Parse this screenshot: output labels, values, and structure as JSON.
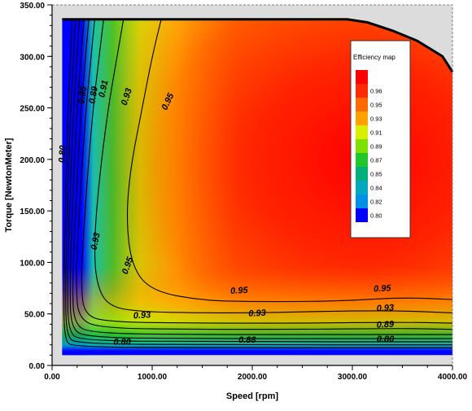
{
  "chart_data": {
    "type": "heatmap",
    "title": "",
    "xlabel": "Speed [rpm]",
    "ylabel": "Torque [NewtonMeter]",
    "xlim": [
      0,
      4000
    ],
    "ylim": [
      0,
      350
    ],
    "x_ticks": [
      {
        "value": 0,
        "label": "0.00"
      },
      {
        "value": 1000,
        "label": "1000.00"
      },
      {
        "value": 2000,
        "label": "2000.00"
      },
      {
        "value": 3000,
        "label": "3000.00"
      },
      {
        "value": 4000,
        "label": "4000.00"
      }
    ],
    "y_ticks": [
      {
        "value": 0,
        "label": "0.00"
      },
      {
        "value": 50,
        "label": "50.00"
      },
      {
        "value": 100,
        "label": "100.00"
      },
      {
        "value": 150,
        "label": "150.00"
      },
      {
        "value": 200,
        "label": "200.00"
      },
      {
        "value": 250,
        "label": "250.00"
      },
      {
        "value": 300,
        "label": "300.00"
      },
      {
        "value": 350,
        "label": "350.00"
      }
    ],
    "domain": {
      "speed_min": 100,
      "speed_max": 4000,
      "torque_min": 10,
      "torque_max": 336
    },
    "max_torque_envelope": [
      {
        "speed": 100,
        "torque": 336
      },
      {
        "speed": 2950,
        "torque": 336
      },
      {
        "speed": 3150,
        "torque": 333
      },
      {
        "speed": 3400,
        "torque": 325
      },
      {
        "speed": 3650,
        "torque": 315
      },
      {
        "speed": 3900,
        "torque": 300
      },
      {
        "speed": 4000,
        "torque": 285
      }
    ],
    "legend": {
      "title": "Efficiency map",
      "levels": [
        {
          "label": "",
          "color": "#ff0000"
        },
        {
          "label": "0.96",
          "color": "#ff2a00"
        },
        {
          "label": "0.95",
          "color": "#ff6a00"
        },
        {
          "label": "0.93",
          "color": "#ffa200"
        },
        {
          "label": "0.91",
          "color": "#d8f000"
        },
        {
          "label": "0.89",
          "color": "#7ee000"
        },
        {
          "label": "0.87",
          "color": "#1fc72b"
        },
        {
          "label": "0.85",
          "color": "#00b07a"
        },
        {
          "label": "0.84",
          "color": "#00a8c0"
        },
        {
          "label": "0.82",
          "color": "#0090e8"
        },
        {
          "label": "0.80",
          "color": "#0000ff"
        }
      ]
    },
    "contour_lines": [
      {
        "level": 0.95,
        "points": [
          [
            1100,
            340
          ],
          [
            1000,
            300
          ],
          [
            900,
            250
          ],
          [
            780,
            190
          ],
          [
            740,
            140
          ],
          [
            800,
            95
          ],
          [
            1000,
            72
          ],
          [
            1500,
            63
          ],
          [
            2000,
            62
          ],
          [
            2500,
            62
          ],
          [
            3000,
            63
          ],
          [
            3500,
            66
          ],
          [
            4000,
            64
          ]
        ]
      },
      {
        "level": 0.93,
        "points": [
          [
            720,
            340
          ],
          [
            650,
            300
          ],
          [
            560,
            250
          ],
          [
            470,
            180
          ],
          [
            420,
            120
          ],
          [
            440,
            80
          ],
          [
            560,
            57
          ],
          [
            900,
            52
          ],
          [
            1500,
            51
          ],
          [
            2000,
            51
          ],
          [
            2500,
            52
          ],
          [
            3000,
            53
          ],
          [
            3500,
            53
          ],
          [
            4000,
            51
          ]
        ]
      },
      {
        "level": 0.91,
        "points": [
          [
            520,
            340
          ],
          [
            470,
            300
          ],
          [
            410,
            250
          ],
          [
            350,
            180
          ],
          [
            310,
            120
          ],
          [
            290,
            80
          ],
          [
            320,
            48
          ],
          [
            600,
            42
          ],
          [
            1500,
            41
          ],
          [
            2500,
            41
          ],
          [
            3500,
            42
          ],
          [
            4000,
            41
          ]
        ]
      },
      {
        "level": 0.89,
        "points": [
          [
            430,
            340
          ],
          [
            390,
            300
          ],
          [
            340,
            250
          ],
          [
            290,
            180
          ],
          [
            255,
            120
          ],
          [
            240,
            80
          ],
          [
            260,
            45
          ],
          [
            500,
            36
          ],
          [
            1500,
            35
          ],
          [
            2500,
            35
          ],
          [
            3500,
            36
          ],
          [
            4000,
            35
          ]
        ]
      },
      {
        "level": 0.87,
        "points": [
          [
            370,
            340
          ],
          [
            335,
            300
          ],
          [
            290,
            250
          ],
          [
            250,
            180
          ],
          [
            220,
            120
          ],
          [
            205,
            80
          ],
          [
            215,
            40
          ],
          [
            400,
            31
          ],
          [
            1500,
            30
          ],
          [
            2500,
            30
          ],
          [
            4000,
            30
          ]
        ]
      },
      {
        "level": 0.85,
        "points": [
          [
            320,
            340
          ],
          [
            290,
            300
          ],
          [
            250,
            250
          ],
          [
            215,
            180
          ],
          [
            190,
            120
          ],
          [
            180,
            80
          ],
          [
            185,
            36
          ],
          [
            350,
            27
          ],
          [
            1500,
            26
          ],
          [
            2500,
            26
          ],
          [
            4000,
            26
          ]
        ]
      },
      {
        "level": 0.84,
        "points": [
          [
            275,
            340
          ],
          [
            250,
            300
          ],
          [
            215,
            250
          ],
          [
            185,
            180
          ],
          [
            165,
            120
          ],
          [
            155,
            80
          ],
          [
            160,
            32
          ],
          [
            300,
            24
          ],
          [
            1500,
            23
          ],
          [
            4000,
            23
          ]
        ]
      },
      {
        "level": 0.82,
        "points": [
          [
            235,
            340
          ],
          [
            215,
            300
          ],
          [
            185,
            250
          ],
          [
            160,
            180
          ],
          [
            145,
            120
          ],
          [
            135,
            80
          ],
          [
            140,
            28
          ],
          [
            260,
            21
          ],
          [
            1500,
            20
          ],
          [
            4000,
            20
          ]
        ]
      },
      {
        "level": 0.8,
        "points": [
          [
            200,
            340
          ],
          [
            185,
            300
          ],
          [
            160,
            250
          ],
          [
            140,
            180
          ],
          [
            125,
            120
          ],
          [
            118,
            80
          ],
          [
            120,
            24
          ],
          [
            220,
            18
          ],
          [
            1500,
            17
          ],
          [
            4000,
            17
          ]
        ]
      }
    ],
    "contour_labels": [
      {
        "text": "0.95",
        "speed": 1180,
        "torque": 255,
        "angle": -65
      },
      {
        "text": "0.93",
        "speed": 770,
        "torque": 260,
        "angle": -72
      },
      {
        "text": "0.91",
        "speed": 540,
        "torque": 268,
        "angle": -78
      },
      {
        "text": "0.89",
        "speed": 440,
        "torque": 262,
        "angle": -80
      },
      {
        "text": "0.85",
        "speed": 330,
        "torque": 262,
        "angle": -82
      },
      {
        "text": "0.80",
        "speed": 130,
        "torque": 205,
        "angle": -86
      },
      {
        "text": "0.93",
        "speed": 460,
        "torque": 120,
        "angle": -78
      },
      {
        "text": "0.95",
        "speed": 780,
        "torque": 96,
        "angle": -70
      },
      {
        "text": "0.95",
        "speed": 1870,
        "torque": 70,
        "angle": -3
      },
      {
        "text": "0.95",
        "speed": 3300,
        "torque": 72,
        "angle": -3
      },
      {
        "text": "0.93",
        "speed": 900,
        "torque": 46,
        "angle": -3
      },
      {
        "text": "0.93",
        "speed": 2050,
        "torque": 48,
        "angle": -3
      },
      {
        "text": "0.93",
        "speed": 3330,
        "torque": 53,
        "angle": -3
      },
      {
        "text": "0.89",
        "speed": 3330,
        "torque": 37,
        "angle": -3
      },
      {
        "text": "0.88",
        "speed": 1950,
        "torque": 22,
        "angle": 0
      },
      {
        "text": "0.80",
        "speed": 3330,
        "torque": 23,
        "angle": 0
      },
      {
        "text": "0.80",
        "speed": 700,
        "torque": 20,
        "angle": 0
      }
    ]
  }
}
